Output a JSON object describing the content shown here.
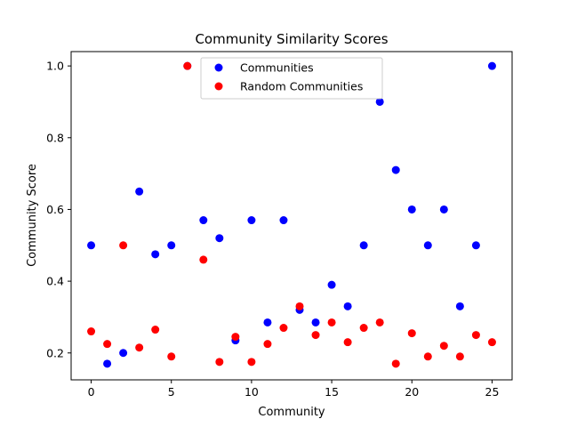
{
  "chart_data": {
    "type": "scatter",
    "title": "Community Similarity Scores",
    "xlabel": "Community",
    "ylabel": "Community Score",
    "xlim": [
      -1.25,
      26.25
    ],
    "ylim": [
      0.125,
      1.04
    ],
    "xticks": [
      0,
      5,
      10,
      15,
      20,
      25
    ],
    "yticks": [
      0.2,
      0.4,
      0.6,
      0.8,
      1.0
    ],
    "xtick_labels": [
      "0",
      "5",
      "10",
      "15",
      "20",
      "25"
    ],
    "ytick_labels": [
      "0.2",
      "0.4",
      "0.6",
      "0.8",
      "1.0"
    ],
    "grid": false,
    "legend_position": "top-center",
    "series": [
      {
        "name": "Communities",
        "color": "#0000ff",
        "x": [
          0,
          1,
          2,
          3,
          4,
          5,
          6,
          7,
          8,
          9,
          10,
          11,
          12,
          13,
          14,
          15,
          16,
          17,
          18,
          19,
          20,
          21,
          22,
          23,
          24,
          25
        ],
        "y": [
          0.5,
          0.17,
          0.2,
          0.65,
          0.475,
          0.5,
          1.0,
          0.57,
          0.52,
          0.235,
          0.57,
          0.285,
          0.57,
          0.32,
          0.285,
          0.39,
          0.33,
          0.5,
          0.9,
          0.71,
          0.6,
          0.5,
          0.6,
          0.33,
          0.5,
          1.0
        ]
      },
      {
        "name": "Random Communities",
        "color": "#ff0000",
        "x": [
          0,
          1,
          2,
          3,
          4,
          5,
          6,
          7,
          8,
          9,
          10,
          11,
          12,
          13,
          14,
          15,
          16,
          17,
          18,
          19,
          20,
          21,
          22,
          23,
          24,
          25
        ],
        "y": [
          0.26,
          0.225,
          0.5,
          0.215,
          0.265,
          0.19,
          1.0,
          0.46,
          0.175,
          0.245,
          0.175,
          0.225,
          0.27,
          0.33,
          0.25,
          0.285,
          0.23,
          0.27,
          0.285,
          0.17,
          0.255,
          0.19,
          0.22,
          0.19,
          0.25,
          0.23
        ]
      }
    ]
  }
}
